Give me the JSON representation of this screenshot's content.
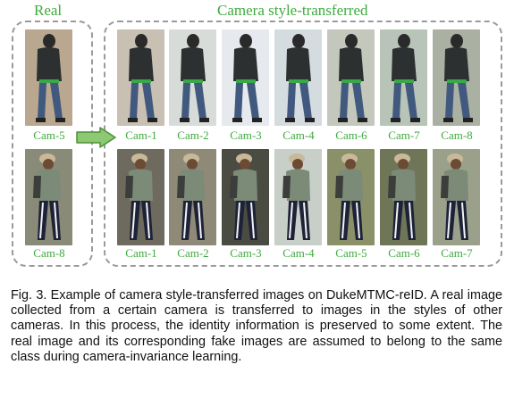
{
  "headers": {
    "real": "Real",
    "transferred": "Camera style-transferred"
  },
  "real_row1_cam": "Cam-5",
  "real_row2_cam": "Cam-8",
  "row1_cams": [
    "Cam-1",
    "Cam-2",
    "Cam-3",
    "Cam-4",
    "Cam-6",
    "Cam-7",
    "Cam-8"
  ],
  "row2_cams": [
    "Cam-1",
    "Cam-2",
    "Cam-3",
    "Cam-4",
    "Cam-5",
    "Cam-6",
    "Cam-7"
  ],
  "caption": "Fig. 3. Example of camera style-transferred images on DukeMTMC-reID. A real image collected from a certain camera is transferred to images in the styles of other cameras. In this process, the identity information is preserved to some extent. The real image and its corresponding fake images are assumed to belong to the same class during camera-invariance learning.",
  "colors": {
    "label_green": "#3faa3f",
    "arrow_fill": "#8dc873",
    "arrow_stroke": "#4f8f3a",
    "dash_border": "#9a9a9a"
  },
  "icons": {
    "arrow": "right-arrow-icon"
  }
}
